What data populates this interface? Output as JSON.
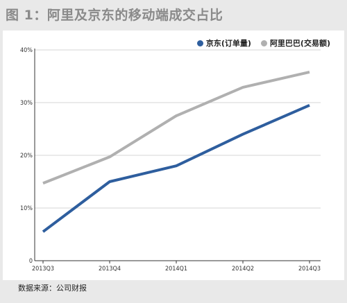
{
  "title": "图 1：阿里及京东的移动端成交占比",
  "source": "数据来源：公司财报",
  "colors": {
    "jd": "#2e5e9e",
    "alibaba": "#b0b0b0"
  },
  "chart_data": {
    "type": "line",
    "x": [
      "2013Q3",
      "2013Q4",
      "2014Q1",
      "2014Q2",
      "2014Q3"
    ],
    "y_ticks": [
      "0",
      "10%",
      "20%",
      "30%",
      "40%"
    ],
    "ylim": [
      0,
      40
    ],
    "grid": true,
    "legend_position": "top-right",
    "series": [
      {
        "name": "京东(订单量)",
        "values": [
          5.5,
          15.0,
          18.0,
          24.0,
          29.5
        ]
      },
      {
        "name": "阿里巴巴(交易额)",
        "values": [
          14.7,
          19.7,
          27.5,
          32.9,
          35.8
        ]
      }
    ]
  }
}
